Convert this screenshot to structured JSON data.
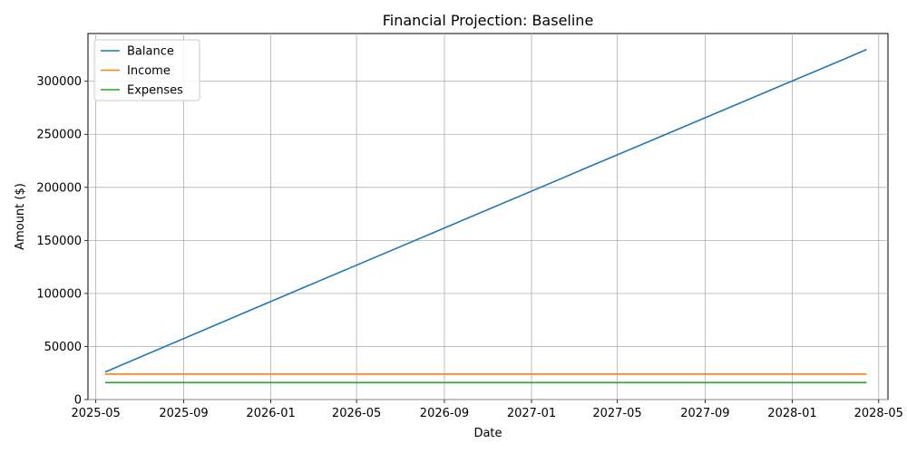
{
  "chart_data": {
    "type": "line",
    "title": "Financial Projection: Baseline",
    "xlabel": "Date",
    "ylabel": "Amount ($)",
    "x_range": [
      "2025-04-20",
      "2028-05-14"
    ],
    "y_range": [
      0,
      345000
    ],
    "x_ticks": [
      "2025-05",
      "2025-09",
      "2026-01",
      "2026-05",
      "2026-09",
      "2027-01",
      "2027-05",
      "2027-09",
      "2028-01",
      "2028-05"
    ],
    "y_ticks": [
      0,
      50000,
      100000,
      150000,
      200000,
      250000,
      300000
    ],
    "y_tick_labels": [
      "0",
      "50000",
      "100000",
      "150000",
      "200000",
      "250000",
      "300000"
    ],
    "grid": true,
    "legend_position": "upper left",
    "series": [
      {
        "name": "Balance",
        "color": "#1f77b4",
        "points": [
          [
            "2025-05-14",
            26000
          ],
          [
            "2026-02-14",
            105000
          ],
          [
            "2026-03-14",
            113000
          ],
          [
            "2027-02-14",
            209000
          ],
          [
            "2027-03-14",
            217000
          ],
          [
            "2028-03-14",
            321000
          ],
          [
            "2028-04-14",
            330000
          ]
        ]
      },
      {
        "name": "Income",
        "color": "#ff7f0e",
        "points": [
          [
            "2025-05-14",
            24000
          ],
          [
            "2028-04-14",
            24000
          ]
        ]
      },
      {
        "name": "Expenses",
        "color": "#2ca02c",
        "points": [
          [
            "2025-05-14",
            16000
          ],
          [
            "2028-04-14",
            16000
          ]
        ]
      }
    ]
  }
}
